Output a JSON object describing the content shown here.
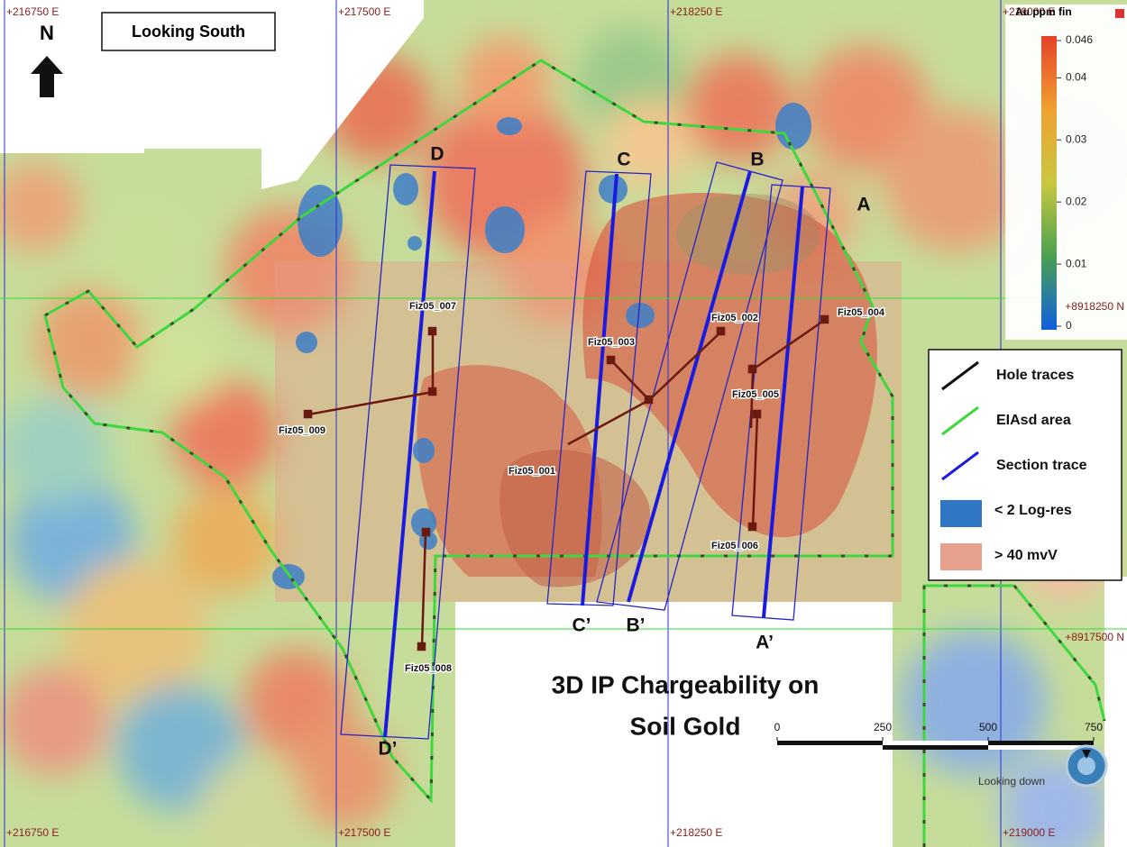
{
  "map": {
    "eastings": [
      "+216750 E",
      "+217500 E",
      "+218250 E",
      "+219000 E"
    ],
    "northings": [
      "+8918250 N",
      "+8917500 N"
    ],
    "north": "N",
    "view_label": "Looking South",
    "colorbar": {
      "title": "Au ppm fin",
      "ticks": [
        0.046,
        0.04,
        0.03,
        0.02,
        0.01,
        0
      ]
    },
    "legend": [
      "Hole traces",
      "EIAsd area",
      "Section trace",
      "< 2 Log-res",
      "> 40 mvV"
    ],
    "sections": [
      "A",
      "A’",
      "B",
      "B’",
      "C",
      "C’",
      "D",
      "D’"
    ],
    "holes": [
      "Fiz05_001",
      "Fiz05_002",
      "Fiz05_003",
      "Fiz05_004",
      "Fiz05_005",
      "Fiz05_006",
      "Fiz05_007",
      "Fiz05_008",
      "Fiz05_009"
    ],
    "title_lines": [
      "3D IP Chargeability on",
      "Soil Gold"
    ],
    "view_mode": "Looking down",
    "scale_ticks": [
      0,
      250,
      500,
      750
    ]
  }
}
